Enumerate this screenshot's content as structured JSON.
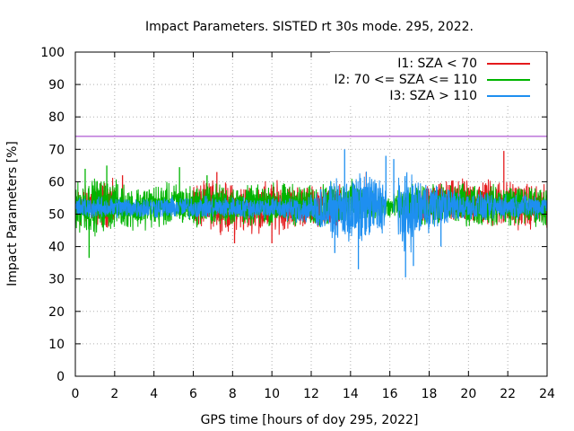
{
  "chart_data": {
    "type": "line",
    "title": "Impact Parameters. SISTED rt 30s mode. 295, 2022.",
    "xlabel": "GPS time [hours of doy 295, 2022]",
    "ylabel": "Impact Parameters [%]",
    "xlim": [
      0,
      24
    ],
    "ylim": [
      0,
      100
    ],
    "x_ticks": [
      "0",
      "2",
      "4",
      "6",
      "8",
      "10",
      "12",
      "14",
      "16",
      "18",
      "20",
      "22",
      "24"
    ],
    "y_ticks": [
      "0",
      "10",
      "20",
      "30",
      "40",
      "50",
      "60",
      "70",
      "80",
      "90",
      "100"
    ],
    "grid": true,
    "legend_position": "top-right",
    "threshold": {
      "value": 74,
      "color": "#9b30c8"
    },
    "series": [
      {
        "name": "I1: SZA < 70",
        "color": "#e41a1c",
        "segments": [
          [
            0,
            2.0
          ],
          [
            6.0,
            13.5
          ],
          [
            17.5,
            24
          ]
        ],
        "envelope": {
          "x": [
            0,
            1,
            2,
            3,
            4,
            5,
            6,
            7,
            8,
            9,
            10,
            11,
            12,
            13,
            14,
            15,
            16,
            17,
            18,
            19,
            20,
            21,
            22,
            23,
            24
          ],
          "high": [
            60,
            61,
            62,
            60,
            61,
            60,
            61,
            62,
            61,
            61,
            62,
            61,
            60,
            60,
            60,
            62,
            62,
            60,
            61,
            62,
            62,
            63,
            62,
            61,
            60
          ],
          "low": [
            44,
            45,
            44,
            44,
            45,
            45,
            44,
            44,
            42,
            43,
            42,
            44,
            45,
            45,
            45,
            44,
            44,
            45,
            45,
            45,
            45,
            44,
            44,
            44,
            44
          ]
        },
        "spikes": [
          [
            21.8,
            69.5
          ],
          [
            8.1,
            41
          ],
          [
            10.0,
            41
          ],
          [
            2.4,
            62
          ],
          [
            7.2,
            63
          ],
          [
            14.8,
            63
          ]
        ]
      },
      {
        "name": "I2: 70 <= SZA <= 110",
        "color": "#00b400",
        "segments": [
          [
            0,
            24
          ]
        ],
        "envelope": {
          "x": [
            0,
            1,
            2,
            3,
            4,
            5,
            6,
            7,
            8,
            9,
            10,
            11,
            12,
            13,
            14,
            15,
            16,
            17,
            18,
            19,
            20,
            21,
            22,
            23,
            24
          ],
          "high": [
            61,
            63,
            62,
            60,
            61,
            61,
            60,
            61,
            60,
            60,
            61,
            61,
            60,
            61,
            62,
            60,
            57,
            60,
            60,
            61,
            61,
            60,
            61,
            60,
            60
          ],
          "low": [
            43,
            42,
            44,
            44,
            44,
            45,
            45,
            45,
            45,
            45,
            45,
            45,
            45,
            45,
            45,
            46,
            47,
            46,
            45,
            45,
            45,
            45,
            45,
            45,
            45
          ]
        },
        "spikes": [
          [
            0.7,
            36.5
          ],
          [
            1.6,
            65
          ],
          [
            0.5,
            64
          ],
          [
            5.3,
            64.5
          ],
          [
            6.7,
            62
          ]
        ]
      },
      {
        "name": "I3: SZA > 110",
        "color": "#1e8ff0",
        "segments": [
          [
            0,
            15.8
          ],
          [
            16.4,
            24
          ]
        ],
        "envelope": {
          "x": [
            0,
            1,
            2,
            3,
            4,
            5,
            6,
            7,
            8,
            9,
            10,
            11,
            12,
            13,
            14,
            15,
            15.8,
            16.4,
            17,
            18,
            19,
            20,
            21,
            22,
            23,
            24
          ],
          "high": [
            56,
            56,
            56,
            56,
            56,
            56,
            56,
            56,
            56,
            56,
            56,
            56,
            58,
            61,
            64,
            66,
            62,
            65,
            65,
            62,
            59,
            58,
            57,
            57,
            57,
            57
          ],
          "low": [
            48,
            48,
            48,
            48,
            48,
            48,
            48,
            48,
            48,
            48,
            48,
            47,
            45,
            42,
            38,
            39,
            43,
            34,
            37,
            43,
            46,
            47,
            47,
            48,
            48,
            48
          ]
        },
        "spikes": [
          [
            16.8,
            30.5
          ],
          [
            14.4,
            33
          ],
          [
            13.7,
            70
          ],
          [
            15.8,
            68
          ],
          [
            16.2,
            67
          ],
          [
            17.2,
            34
          ],
          [
            13.2,
            38
          ],
          [
            18.6,
            40
          ]
        ]
      }
    ]
  }
}
